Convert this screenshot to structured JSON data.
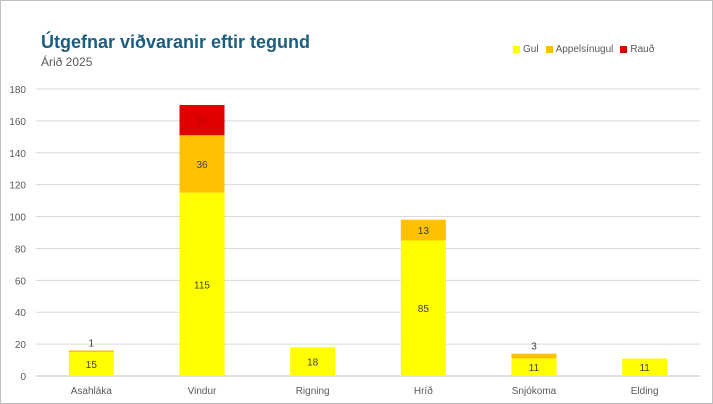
{
  "chart_data": {
    "type": "bar",
    "stacked": true,
    "title": "Útgefnar viðvaranir eftir tegund",
    "subtitle": "Árið 2025",
    "xlabel": "",
    "ylabel": "",
    "ylim": [
      0,
      180
    ],
    "yticks": [
      0,
      20,
      40,
      60,
      80,
      100,
      120,
      140,
      160,
      180
    ],
    "grid": true,
    "legend_position": "top-right",
    "categories": [
      "Asahláka",
      "Vindur",
      "Rigning",
      "Hríð",
      "Snjókoma",
      "Elding"
    ],
    "series": [
      {
        "name": "Gul",
        "color": "#FFFF00",
        "values": [
          15,
          115,
          18,
          85,
          11,
          11
        ]
      },
      {
        "name": "Appelsínugul",
        "color": "#FFC000",
        "values": [
          1,
          36,
          0,
          13,
          3,
          0
        ]
      },
      {
        "name": "Rauð",
        "color": "#E00000",
        "values": [
          0,
          19,
          0,
          0,
          0,
          0
        ]
      }
    ]
  }
}
